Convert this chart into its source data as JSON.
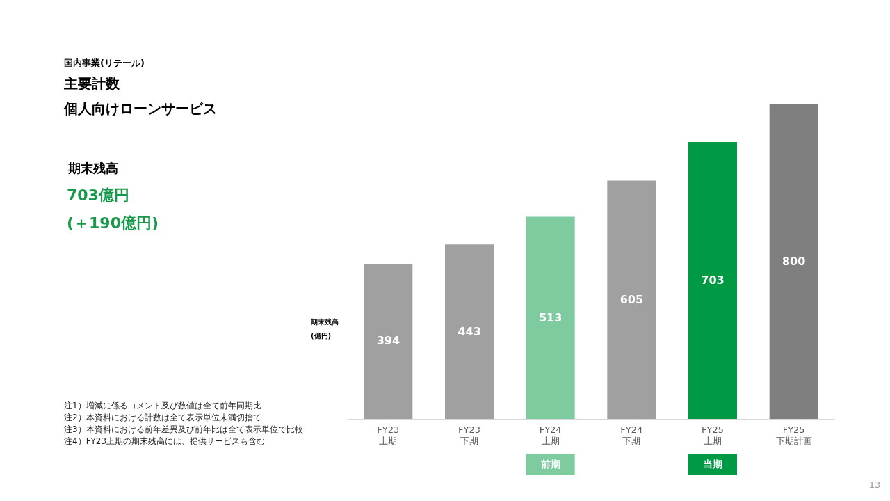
{
  "chart_data": {
    "type": "bar",
    "title": "主要計数",
    "subtitle": "個人向けローンサービス",
    "ylabel": "期末残高\n(億円)",
    "categories": [
      "FY23\n上期",
      "FY23\n下期",
      "FY24\n上期",
      "FY24\n下期",
      "FY25\n上期",
      "FY25\n下期計画"
    ],
    "values": [
      394,
      443,
      513,
      605,
      703,
      800
    ],
    "colors": [
      "#a0a0a0",
      "#a0a0a0",
      "#7fcba0",
      "#a0a0a0",
      "#009944",
      "#7f7f7f"
    ],
    "ylim": [
      0,
      800
    ],
    "data_labels": true,
    "annotations": [
      "国内事業(リテール)",
      "期末残高",
      "703億円",
      "(＋190億円)",
      "注1）増減に係るコメント及び数値は全て前年同期比",
      "注2）本資料における計数は全て表示単位未満切捨て",
      "注3）本資料における前年差異及び前年比は全て表示単位で比較",
      "注4）FY23上期の期末残高には、提供サービスも含む",
      "13",
      "前期",
      "当期"
    ]
  }
}
